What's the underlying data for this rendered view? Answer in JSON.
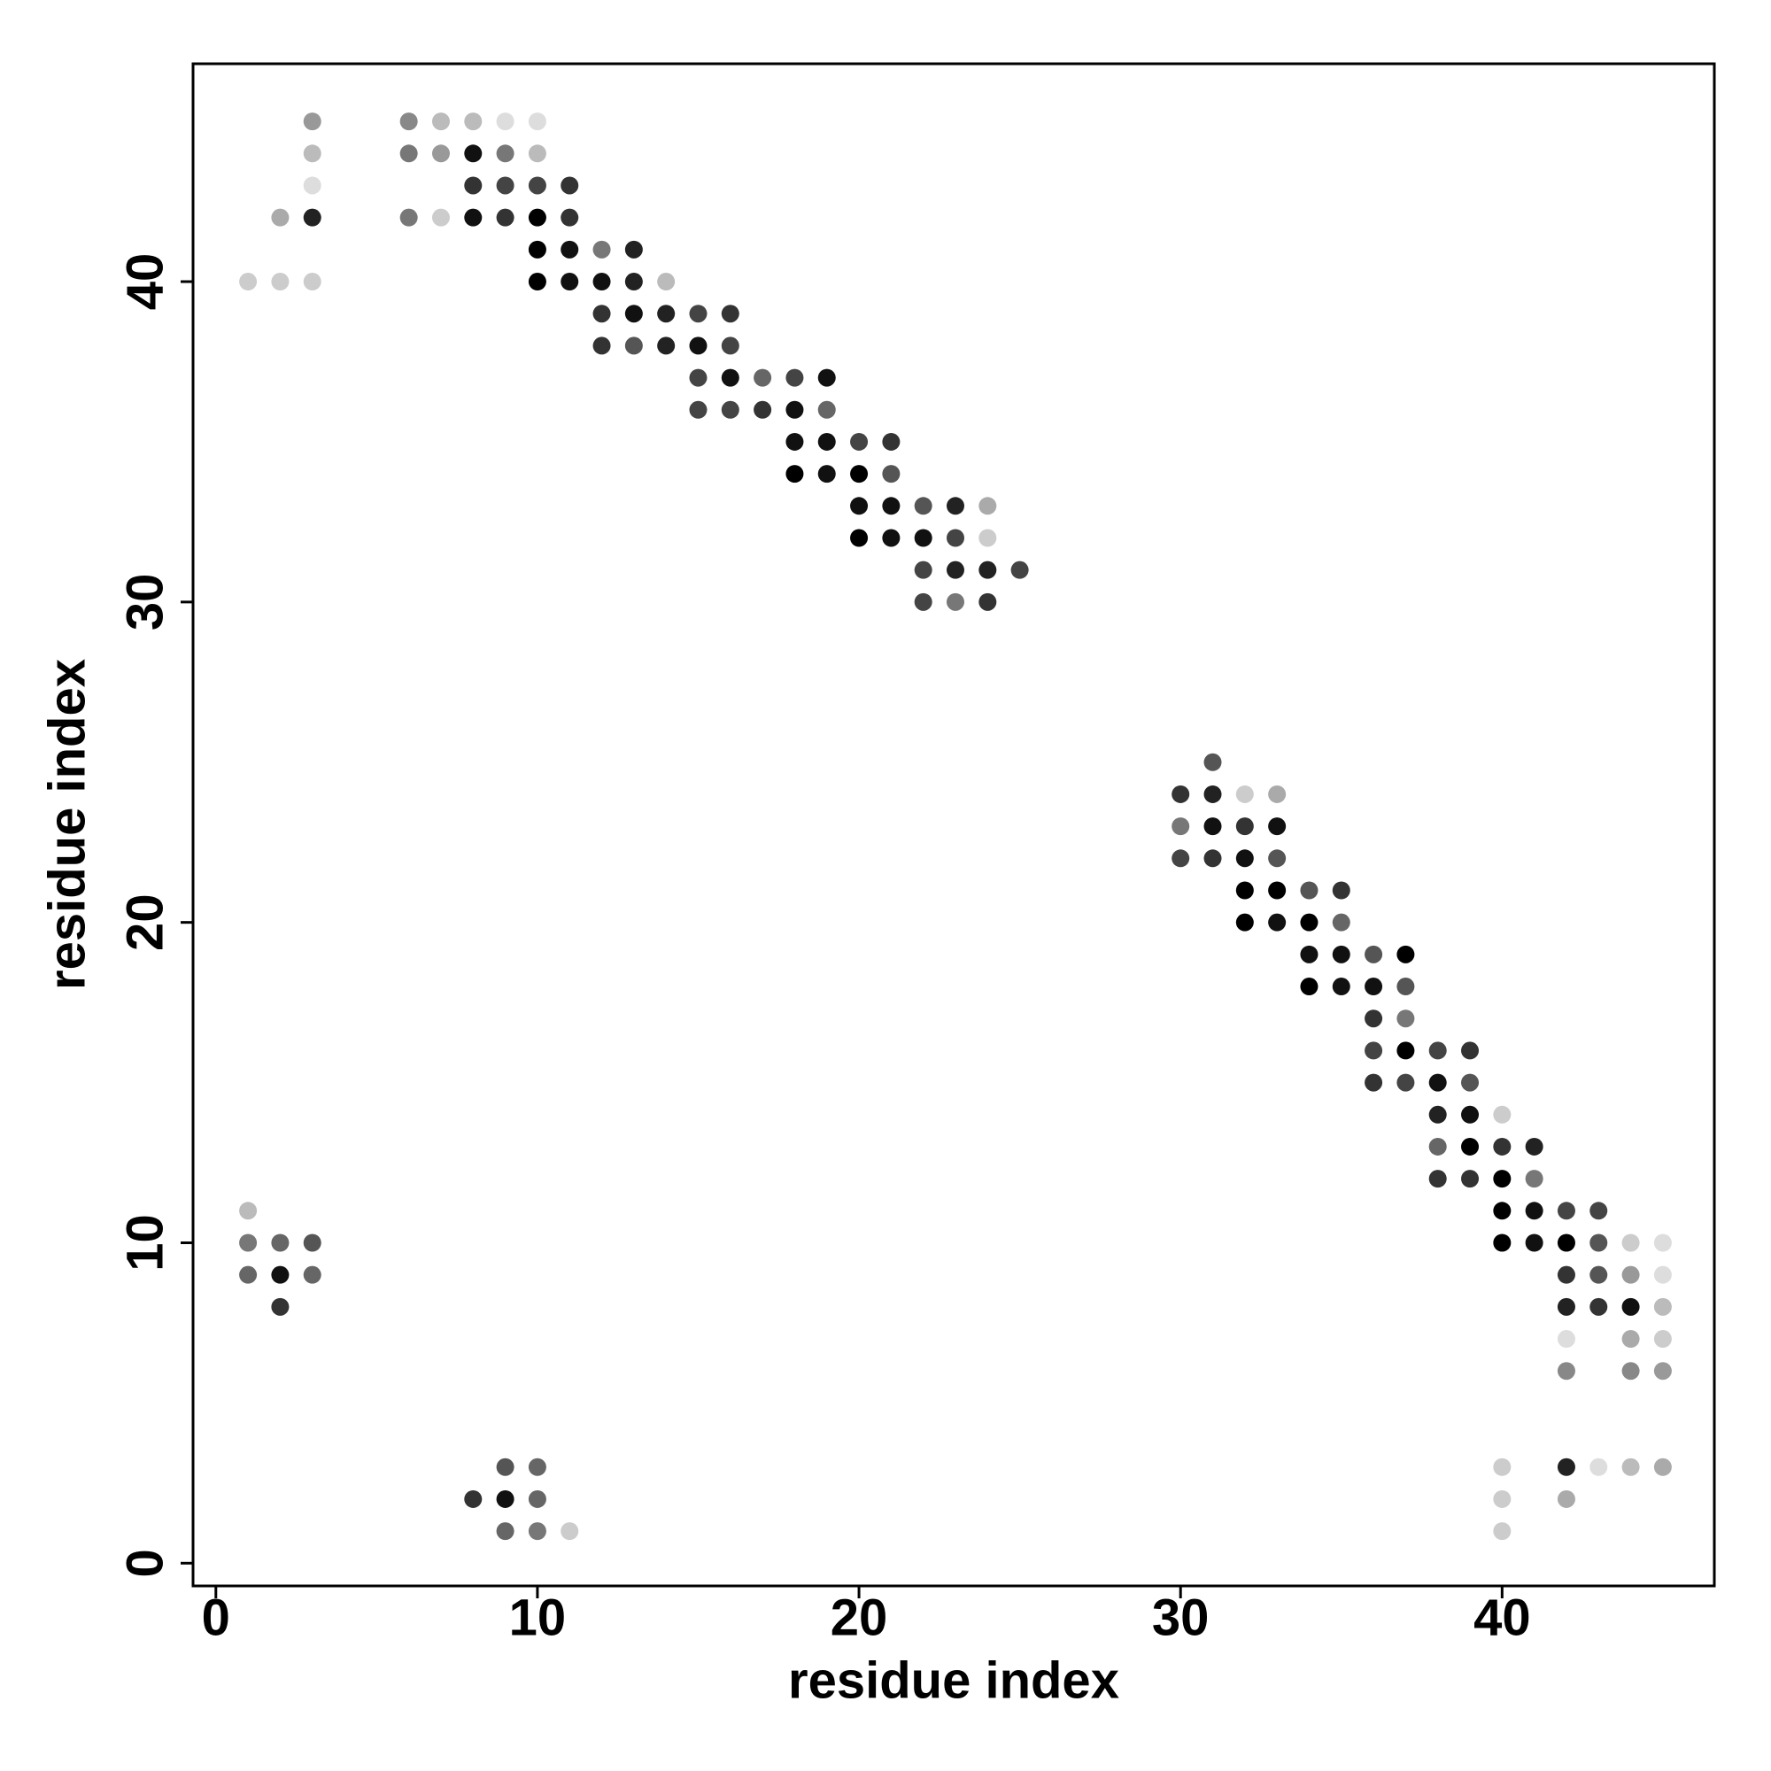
{
  "chart_data": {
    "type": "scatter",
    "x_label": "residue index",
    "y_label": "residue index",
    "xlim": [
      -0.71,
      46.6
    ],
    "ylim": [
      -0.71,
      46.8
    ],
    "xticks": [
      0,
      10,
      20,
      30,
      40
    ],
    "yticks": [
      0,
      10,
      20,
      30,
      40
    ],
    "grid": false,
    "x": [
      3,
      6,
      7,
      8,
      9,
      10,
      3,
      6,
      7,
      8,
      9,
      10,
      3,
      8,
      9,
      10,
      11,
      2,
      3,
      6,
      7,
      8,
      9,
      10,
      11,
      10,
      11,
      12,
      13,
      1,
      2,
      3,
      10,
      11,
      12,
      13,
      14,
      12,
      13,
      14,
      15,
      16,
      12,
      13,
      14,
      15,
      16,
      15,
      16,
      17,
      18,
      19,
      15,
      16,
      17,
      18,
      19,
      18,
      19,
      20,
      21,
      18,
      19,
      20,
      21,
      20,
      21,
      22,
      23,
      24,
      20,
      21,
      22,
      23,
      24,
      22,
      23,
      24,
      25,
      22,
      23,
      24,
      31,
      30,
      31,
      32,
      33,
      30,
      31,
      32,
      33,
      30,
      31,
      32,
      33,
      32,
      33,
      34,
      35,
      32,
      33,
      34,
      35,
      34,
      35,
      36,
      37,
      34,
      35,
      36,
      37,
      36,
      37,
      36,
      37,
      38,
      39,
      36,
      37,
      38,
      39,
      38,
      39,
      40,
      38,
      39,
      40,
      41,
      38,
      39,
      40,
      41,
      1,
      40,
      41,
      42,
      43,
      1,
      2,
      3,
      40,
      41,
      42,
      43,
      44,
      45,
      1,
      2,
      3,
      42,
      43,
      44,
      45,
      2,
      42,
      43,
      44,
      45,
      42,
      44,
      45,
      42,
      44,
      45,
      9,
      10,
      40,
      42,
      43,
      44,
      45,
      8,
      9,
      10,
      40,
      42,
      9,
      10,
      11,
      40
    ],
    "series": [
      {
        "values": [
          45,
          45,
          45,
          45,
          45,
          45,
          44,
          44,
          44,
          44,
          44,
          44,
          43,
          43,
          43,
          43,
          43,
          42,
          42,
          42,
          42,
          42,
          42,
          42,
          42,
          41,
          41,
          41,
          41,
          40,
          40,
          40,
          40,
          40,
          40,
          40,
          40,
          39,
          39,
          39,
          39,
          39,
          38,
          38,
          38,
          38,
          38,
          37,
          37,
          37,
          37,
          37,
          36,
          36,
          36,
          36,
          36,
          35,
          35,
          35,
          35,
          34,
          34,
          34,
          34,
          33,
          33,
          33,
          33,
          33,
          32,
          32,
          32,
          32,
          32,
          31,
          31,
          31,
          31,
          30,
          30,
          30,
          25,
          24,
          24,
          24,
          24,
          23,
          23,
          23,
          23,
          22,
          22,
          22,
          22,
          21,
          21,
          21,
          21,
          20,
          20,
          20,
          20,
          19,
          19,
          19,
          19,
          18,
          18,
          18,
          18,
          17,
          17,
          16,
          16,
          16,
          16,
          15,
          15,
          15,
          15,
          14,
          14,
          14,
          13,
          13,
          13,
          13,
          12,
          12,
          12,
          12,
          11,
          11,
          11,
          11,
          11,
          10,
          10,
          10,
          10,
          10,
          10,
          10,
          10,
          10,
          9,
          9,
          9,
          9,
          9,
          9,
          9,
          8,
          8,
          8,
          8,
          8,
          7,
          7,
          7,
          6,
          6,
          6,
          3,
          3,
          3,
          3,
          3,
          3,
          3,
          2,
          2,
          2,
          2,
          2,
          1,
          1,
          1,
          1
        ],
        "colors": [
          "#999",
          "#888",
          "#bbb",
          "#bbb",
          "#ddd",
          "#ddd",
          "#bbb",
          "#777",
          "#999",
          "#111",
          "#777",
          "#bbb",
          "#ddd",
          "#333",
          "#444",
          "#444",
          "#333",
          "#aaa",
          "#222",
          "#777",
          "#ccc",
          "#111",
          "#333",
          "#000",
          "#333",
          "#000",
          "#111",
          "#777",
          "#222",
          "#ccc",
          "#ccc",
          "#ccc",
          "#000",
          "#111",
          "#111",
          "#222",
          "#bbb",
          "#333",
          "#111",
          "#222",
          "#444",
          "#333",
          "#333",
          "#555",
          "#222",
          "#111",
          "#444",
          "#444",
          "#111",
          "#666",
          "#444",
          "#111",
          "#444",
          "#444",
          "#333",
          "#111",
          "#666",
          "#111",
          "#111",
          "#444",
          "#333",
          "#000",
          "#111",
          "#000",
          "#555",
          "#111",
          "#111",
          "#555",
          "#222",
          "#aaa",
          "#000",
          "#111",
          "#111",
          "#444",
          "#ccc",
          "#444",
          "#222",
          "#222",
          "#444",
          "#444",
          "#777",
          "#333",
          "#555",
          "#333",
          "#222",
          "#ccc",
          "#aaa",
          "#777",
          "#111",
          "#333",
          "#111",
          "#444",
          "#333",
          "#111",
          "#555",
          "#000",
          "#000",
          "#555",
          "#333",
          "#000",
          "#111",
          "#000",
          "#666",
          "#111",
          "#111",
          "#555",
          "#000",
          "#000",
          "#111",
          "#111",
          "#555",
          "#333",
          "#777",
          "#444",
          "#000",
          "#444",
          "#333",
          "#333",
          "#444",
          "#111",
          "#555",
          "#222",
          "#111",
          "#ccc",
          "#666",
          "#000",
          "#333",
          "#222",
          "#333",
          "#333",
          "#000",
          "#777",
          "#bbb",
          "#000",
          "#111",
          "#444",
          "#444",
          "#777",
          "#666",
          "#555",
          "#000",
          "#111",
          "#000",
          "#555",
          "#ccc",
          "#ddd",
          "#666",
          "#111",
          "#666",
          "#333",
          "#555",
          "#999",
          "#ddd",
          "#333",
          "#222",
          "#333",
          "#111",
          "#bbb",
          "#ddd",
          "#aaa",
          "#ccc",
          "#888",
          "#888",
          "#999",
          "#555",
          "#666",
          "#ccc",
          "#222",
          "#ddd",
          "#bbb",
          "#aaa",
          "#333",
          "#111",
          "#666",
          "#ccc",
          "#aaa",
          "#666",
          "#777",
          "#ccc",
          "#ccc"
        ]
      }
    ]
  }
}
